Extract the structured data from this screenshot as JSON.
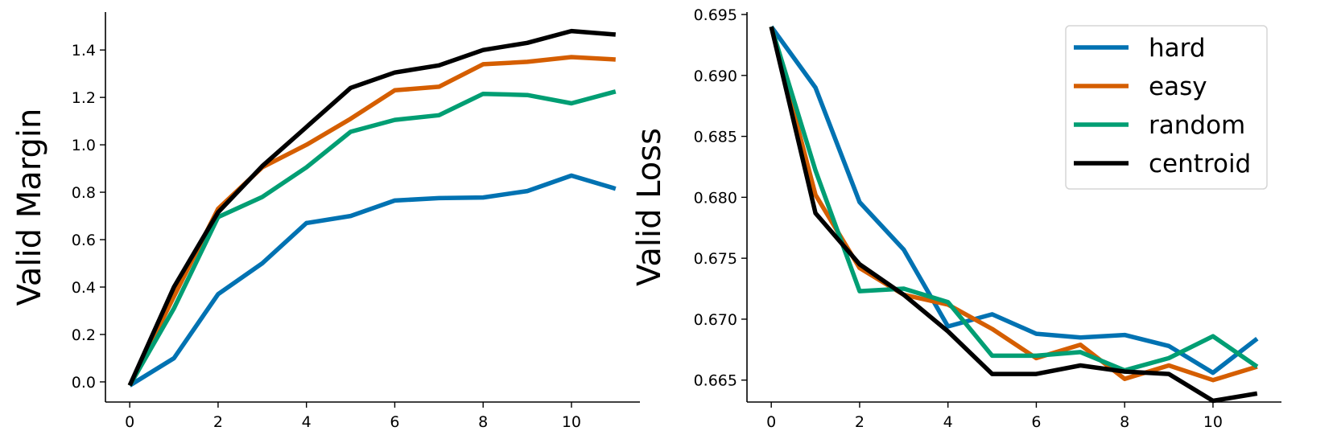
{
  "chart_data": [
    {
      "type": "line",
      "title": "",
      "xlabel": "",
      "ylabel": "Valid Margin",
      "xlim": [
        -0.55,
        11.55
      ],
      "ylim": [
        -0.085,
        1.56
      ],
      "xticks": [
        0,
        2,
        4,
        6,
        8,
        10
      ],
      "yticks": [
        0.0,
        0.2,
        0.4,
        0.6,
        0.8,
        1.0,
        1.2,
        1.4
      ],
      "ytick_decimals": 1,
      "x": [
        0,
        1,
        2,
        3,
        4,
        5,
        6,
        7,
        8,
        9,
        10,
        11
      ],
      "series": [
        {
          "name": "hard",
          "color": "#0072B2",
          "values": [
            -0.015,
            0.1,
            0.37,
            0.5,
            0.67,
            0.7,
            0.765,
            0.775,
            0.778,
            0.805,
            0.87,
            0.815
          ]
        },
        {
          "name": "easy",
          "color": "#D55E00",
          "values": [
            -0.015,
            0.36,
            0.73,
            0.905,
            1.0,
            1.11,
            1.23,
            1.245,
            1.34,
            1.35,
            1.37,
            1.36
          ]
        },
        {
          "name": "random",
          "color": "#009E73",
          "values": [
            -0.015,
            0.31,
            0.695,
            0.78,
            0.905,
            1.055,
            1.105,
            1.125,
            1.215,
            1.21,
            1.175,
            1.225
          ]
        },
        {
          "name": "centroid",
          "color": "#000000",
          "values": [
            -0.015,
            0.4,
            0.715,
            0.91,
            1.075,
            1.24,
            1.305,
            1.335,
            1.4,
            1.43,
            1.48,
            1.465
          ]
        }
      ]
    },
    {
      "type": "line",
      "title": "",
      "xlabel": "",
      "ylabel": "Valid Loss",
      "xlim": [
        -0.55,
        11.55
      ],
      "ylim": [
        0.6632,
        0.6952
      ],
      "xticks": [
        0,
        2,
        4,
        6,
        8,
        10
      ],
      "yticks": [
        0.665,
        0.67,
        0.675,
        0.68,
        0.685,
        0.69,
        0.695
      ],
      "ytick_decimals": 3,
      "x": [
        0,
        1,
        2,
        3,
        4,
        5,
        6,
        7,
        8,
        9,
        10,
        11
      ],
      "legend_position": "top-right",
      "series": [
        {
          "name": "hard",
          "color": "#0072B2",
          "values": [
            0.694,
            0.689,
            0.6796,
            0.6757,
            0.6694,
            0.6704,
            0.6688,
            0.6685,
            0.6687,
            0.6678,
            0.6656,
            0.6684
          ]
        },
        {
          "name": "easy",
          "color": "#D55E00",
          "values": [
            0.694,
            0.6802,
            0.6742,
            0.672,
            0.6712,
            0.6692,
            0.6668,
            0.6679,
            0.6651,
            0.6662,
            0.665,
            0.6661
          ]
        },
        {
          "name": "random",
          "color": "#009E73",
          "values": [
            0.694,
            0.6822,
            0.6723,
            0.6725,
            0.6714,
            0.667,
            0.667,
            0.6673,
            0.6658,
            0.6668,
            0.6686,
            0.6661
          ]
        },
        {
          "name": "centroid",
          "color": "#000000",
          "values": [
            0.694,
            0.6787,
            0.6745,
            0.672,
            0.669,
            0.6655,
            0.6655,
            0.6662,
            0.6657,
            0.6655,
            0.6633,
            0.6639
          ]
        }
      ]
    }
  ]
}
